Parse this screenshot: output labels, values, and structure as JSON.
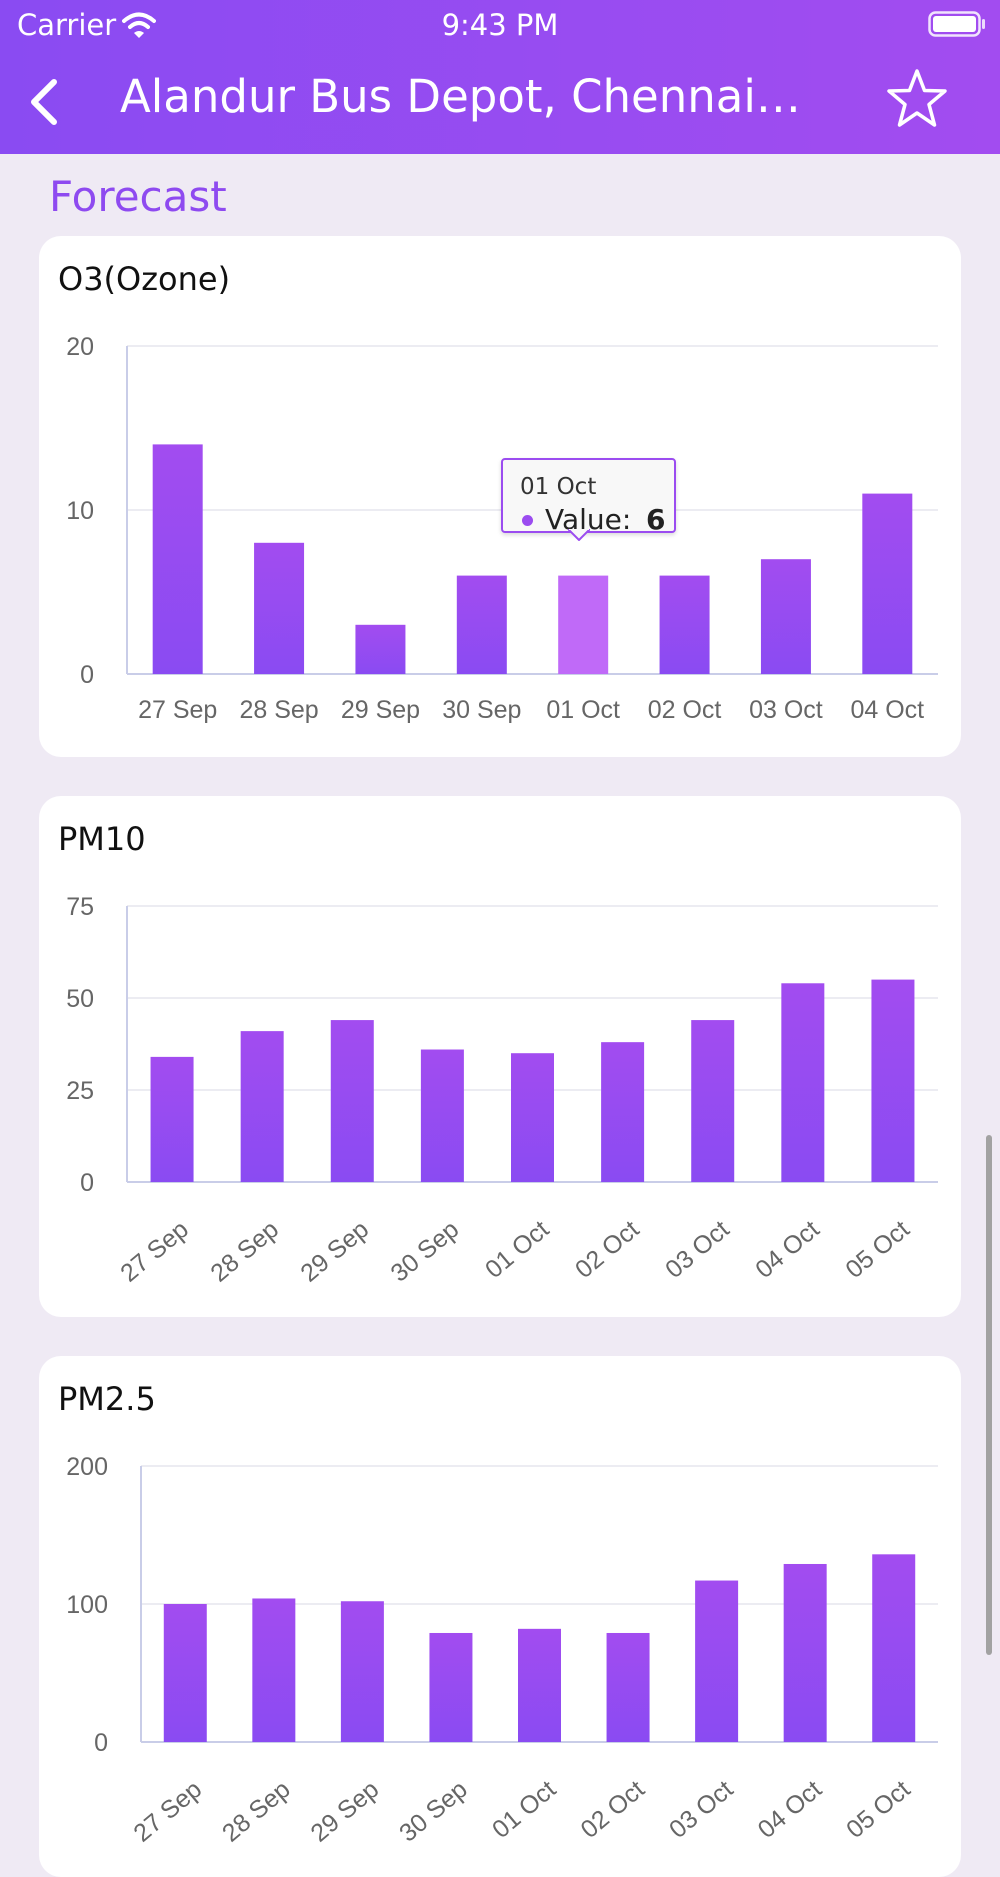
{
  "status_bar": {
    "carrier": "Carrier",
    "time": "9:43 PM"
  },
  "header": {
    "title": "Alandur Bus Depot, Chennai,…",
    "back_icon": "chevron-left-icon",
    "favorite_icon": "star-outline-icon"
  },
  "section": {
    "title": "Forecast"
  },
  "colors": {
    "bar_top": "#a24cf0",
    "bar_bottom": "#8a4bf2",
    "highlight": "#c06af8",
    "header": "#9b4cf0"
  },
  "chart_data": [
    {
      "type": "bar",
      "title": "O3(Ozone)",
      "categories": [
        "27 Sep",
        "28 Sep",
        "29 Sep",
        "30 Sep",
        "01 Oct",
        "02 Oct",
        "03 Oct",
        "04 Oct"
      ],
      "values": [
        14,
        8,
        3,
        6,
        6,
        6,
        7,
        11
      ],
      "yticks": [
        0,
        10,
        20
      ],
      "ylim": [
        0,
        20
      ],
      "label_rotation": 0,
      "grid": true,
      "highlight_index": 4,
      "tooltip": {
        "header": "01 Oct",
        "label": "Value:",
        "value": "6"
      }
    },
    {
      "type": "bar",
      "title": "PM10",
      "categories": [
        "27 Sep",
        "28 Sep",
        "29 Sep",
        "30 Sep",
        "01 Oct",
        "02 Oct",
        "03 Oct",
        "04 Oct",
        "05 Oct"
      ],
      "values": [
        34,
        41,
        44,
        36,
        35,
        38,
        44,
        54,
        55
      ],
      "yticks": [
        0,
        25,
        50,
        75
      ],
      "ylim": [
        0,
        75
      ],
      "label_rotation": -40,
      "grid": true
    },
    {
      "type": "bar",
      "title": "PM2.5",
      "categories": [
        "27 Sep",
        "28 Sep",
        "29 Sep",
        "30 Sep",
        "01 Oct",
        "02 Oct",
        "03 Oct",
        "04 Oct",
        "05 Oct"
      ],
      "values": [
        100,
        104,
        102,
        79,
        82,
        79,
        117,
        129,
        136
      ],
      "yticks": [
        0,
        100,
        200
      ],
      "ylim": [
        0,
        200
      ],
      "label_rotation": -40,
      "grid": true
    }
  ]
}
